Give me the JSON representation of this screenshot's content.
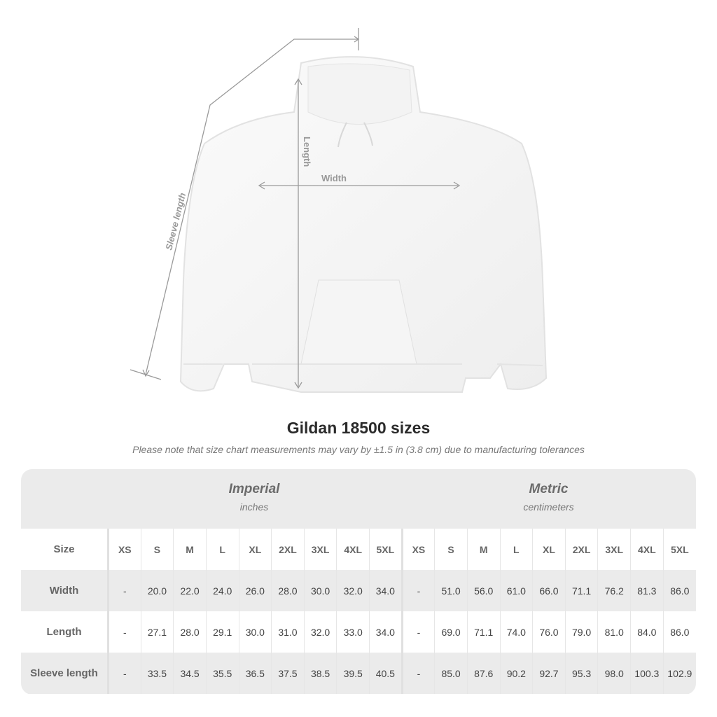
{
  "illustration": {
    "labels": {
      "sleeve": "Sleeve length",
      "length": "Length",
      "width": "Width"
    }
  },
  "title": "Gildan 18500 sizes",
  "note": "Please note that size chart measurements may vary by ±1.5 in (3.8 cm) due to manufacturing tolerances",
  "table": {
    "imperial": {
      "heading": "Imperial",
      "unit": "inches"
    },
    "metric": {
      "heading": "Metric",
      "unit": "centimeters"
    },
    "size_label": "Size",
    "sizes": [
      "XS",
      "S",
      "M",
      "L",
      "XL",
      "2XL",
      "3XL",
      "4XL",
      "5XL"
    ],
    "rows": [
      {
        "label": "Width",
        "imperial": [
          "-",
          "20.0",
          "22.0",
          "24.0",
          "26.0",
          "28.0",
          "30.0",
          "32.0",
          "34.0"
        ],
        "metric": [
          "-",
          "51.0",
          "56.0",
          "61.0",
          "66.0",
          "71.1",
          "76.2",
          "81.3",
          "86.0"
        ]
      },
      {
        "label": "Length",
        "imperial": [
          "-",
          "27.1",
          "28.0",
          "29.1",
          "30.0",
          "31.0",
          "32.0",
          "33.0",
          "34.0"
        ],
        "metric": [
          "-",
          "69.0",
          "71.1",
          "74.0",
          "76.0",
          "79.0",
          "81.0",
          "84.0",
          "86.0"
        ]
      },
      {
        "label": "Sleeve length",
        "imperial": [
          "-",
          "33.5",
          "34.5",
          "35.5",
          "36.5",
          "37.5",
          "38.5",
          "39.5",
          "40.5"
        ],
        "metric": [
          "-",
          "85.0",
          "87.6",
          "90.2",
          "92.7",
          "95.3",
          "98.0",
          "100.3",
          "102.9"
        ]
      }
    ]
  }
}
